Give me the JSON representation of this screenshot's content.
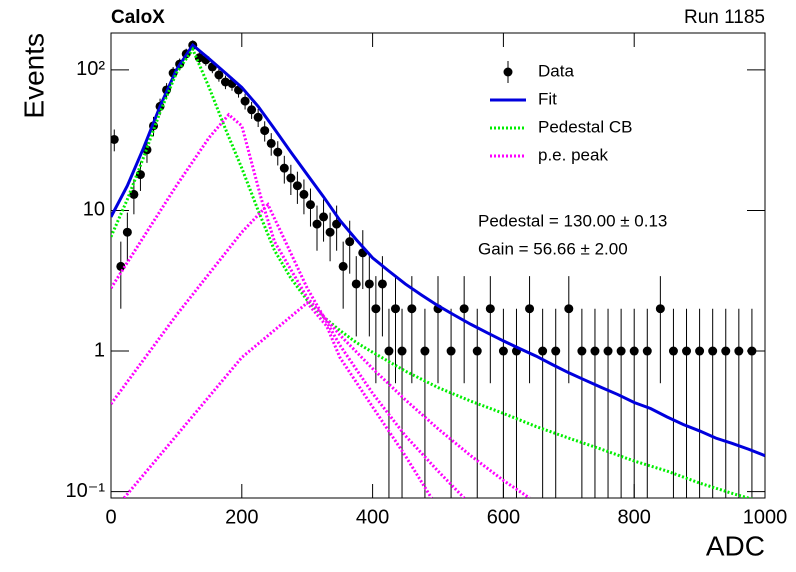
{
  "chart_data": {
    "type": "line",
    "title": "CaloX",
    "subtitle": "Run 1185",
    "x_label": "ADC",
    "y_label": "Events",
    "annotations": [
      "Pedestal = 130.00 ± 0.13",
      "Gain = 56.66 ± 2.00"
    ],
    "xlim": [
      0,
      1000
    ],
    "xticks": [
      0,
      200,
      400,
      600,
      800,
      1000
    ],
    "ylim": [
      0.09,
      183
    ],
    "yticks": [
      {
        "value": 0.1,
        "label": "10⁻¹"
      },
      1,
      10,
      {
        "value": 100,
        "label": "10²"
      }
    ],
    "log_y": true,
    "legend": "upper-right",
    "series": [
      {
        "name": "Data",
        "type": "errorbar",
        "color": "#000000",
        "x": [
          5,
          15,
          25,
          35,
          45,
          55,
          65,
          75,
          85,
          95,
          105,
          115,
          125,
          135,
          145,
          155,
          165,
          175,
          185,
          195,
          205,
          215,
          225,
          235,
          245,
          255,
          265,
          275,
          285,
          295,
          305,
          315,
          325,
          335,
          345,
          355,
          365,
          375,
          385,
          395,
          405,
          415,
          425,
          435,
          445,
          460,
          480,
          500,
          520,
          540,
          560,
          580,
          600,
          620,
          640,
          660,
          680,
          700,
          720,
          740,
          760,
          780,
          800,
          820,
          840,
          860,
          880,
          900,
          920,
          940,
          960,
          980
        ],
        "values": [
          32,
          4,
          7,
          13,
          18,
          27,
          40,
          55,
          72,
          95,
          110,
          130,
          150,
          122,
          118,
          105,
          92,
          82,
          80,
          72,
          60,
          52,
          46,
          37,
          30,
          26,
          20,
          17,
          15,
          13,
          11,
          8,
          9,
          7,
          8,
          4,
          6,
          3,
          5,
          3,
          2,
          3,
          1,
          2,
          1,
          2,
          1,
          2,
          1,
          2,
          1,
          2,
          1,
          1,
          2,
          1,
          1,
          2,
          1,
          1,
          1,
          1,
          1,
          1,
          2,
          1,
          1,
          1,
          1,
          1,
          1,
          1
        ],
        "errors": [
          5.66,
          2,
          2.65,
          3.61,
          4.24,
          5.2,
          6.32,
          7.42,
          8.49,
          9.75,
          10.49,
          11.4,
          12.25,
          11.05,
          10.86,
          10.25,
          9.59,
          9.06,
          8.94,
          8.49,
          7.75,
          7.21,
          6.78,
          6.08,
          5.48,
          5.1,
          4.47,
          4.12,
          3.87,
          3.61,
          3.32,
          2.83,
          3,
          2.65,
          2.83,
          2,
          2.45,
          1.73,
          2.24,
          1.73,
          1.41,
          1.73,
          1,
          1.41,
          1,
          1.41,
          1,
          1.41,
          1,
          1.41,
          1,
          1.41,
          1,
          1,
          1.41,
          1,
          1,
          1.41,
          1,
          1,
          1,
          1,
          1,
          1,
          1.41,
          1,
          1,
          1,
          1,
          1,
          1,
          1
        ]
      },
      {
        "name": "Fit",
        "type": "solid",
        "color": "#0000dd",
        "x": [
          0,
          25,
          50,
          75,
          100,
          125,
          150,
          175,
          200,
          225,
          250,
          275,
          300,
          325,
          350,
          375,
          400,
          425,
          450,
          475,
          500,
          525,
          550,
          575,
          600,
          625,
          650,
          675,
          700,
          725,
          750,
          775,
          800,
          825,
          850,
          875,
          900,
          925,
          950,
          975,
          1000
        ],
        "values": [
          9,
          15,
          28,
          55,
          100,
          150,
          120,
          95,
          75,
          55,
          38,
          26,
          18,
          12.5,
          8.5,
          6.2,
          4.6,
          3.7,
          3.0,
          2.5,
          2.1,
          1.8,
          1.55,
          1.35,
          1.18,
          1.04,
          0.92,
          0.8,
          0.7,
          0.62,
          0.55,
          0.49,
          0.43,
          0.39,
          0.34,
          0.3,
          0.27,
          0.24,
          0.22,
          0.2,
          0.18
        ]
      },
      {
        "name": "Pedestal CB",
        "type": "dotted",
        "color": "#00ee00",
        "x": [
          0,
          25,
          50,
          75,
          100,
          125,
          150,
          175,
          200,
          225,
          250,
          275,
          300,
          325,
          350,
          375,
          400,
          450,
          500,
          550,
          600,
          650,
          700,
          750,
          800,
          850,
          900,
          950,
          1000
        ],
        "values": [
          6.5,
          12,
          24,
          50,
          95,
          140,
          75,
          38,
          20,
          10,
          5.2,
          3.3,
          2.3,
          1.75,
          1.4,
          1.15,
          0.98,
          0.72,
          0.55,
          0.44,
          0.36,
          0.29,
          0.24,
          0.2,
          0.165,
          0.14,
          0.115,
          0.097,
          0.083
        ]
      },
      {
        "name": "p.e. peak",
        "type": "dotted",
        "color": "#ff00ff",
        "x": [
          0,
          50,
          100,
          150,
          180,
          200,
          230,
          250,
          300,
          350,
          400,
          450,
          500,
          550,
          600,
          640
        ],
        "values": [
          2.8,
          6.5,
          15,
          33,
          48,
          40,
          12,
          6,
          2.4,
          1.3,
          0.75,
          0.45,
          0.28,
          0.18,
          0.12,
          0.09
        ]
      },
      {
        "name": "p.e. peak",
        "type": "dotted",
        "color": "#ff00ff",
        "x": [
          0,
          100,
          200,
          240,
          260,
          300,
          350,
          400,
          450,
          500,
          540
        ],
        "values": [
          0.42,
          1.8,
          7,
          11,
          7,
          2.8,
          1.1,
          0.5,
          0.25,
          0.14,
          0.09
        ]
      },
      {
        "name": "p.e. peak",
        "type": "dotted",
        "color": "#ff00ff",
        "x": [
          20,
          100,
          200,
          300,
          330,
          350,
          400,
          450,
          490
        ],
        "values": [
          0.09,
          0.25,
          0.9,
          2.2,
          1.5,
          0.9,
          0.4,
          0.18,
          0.09
        ]
      }
    ]
  }
}
